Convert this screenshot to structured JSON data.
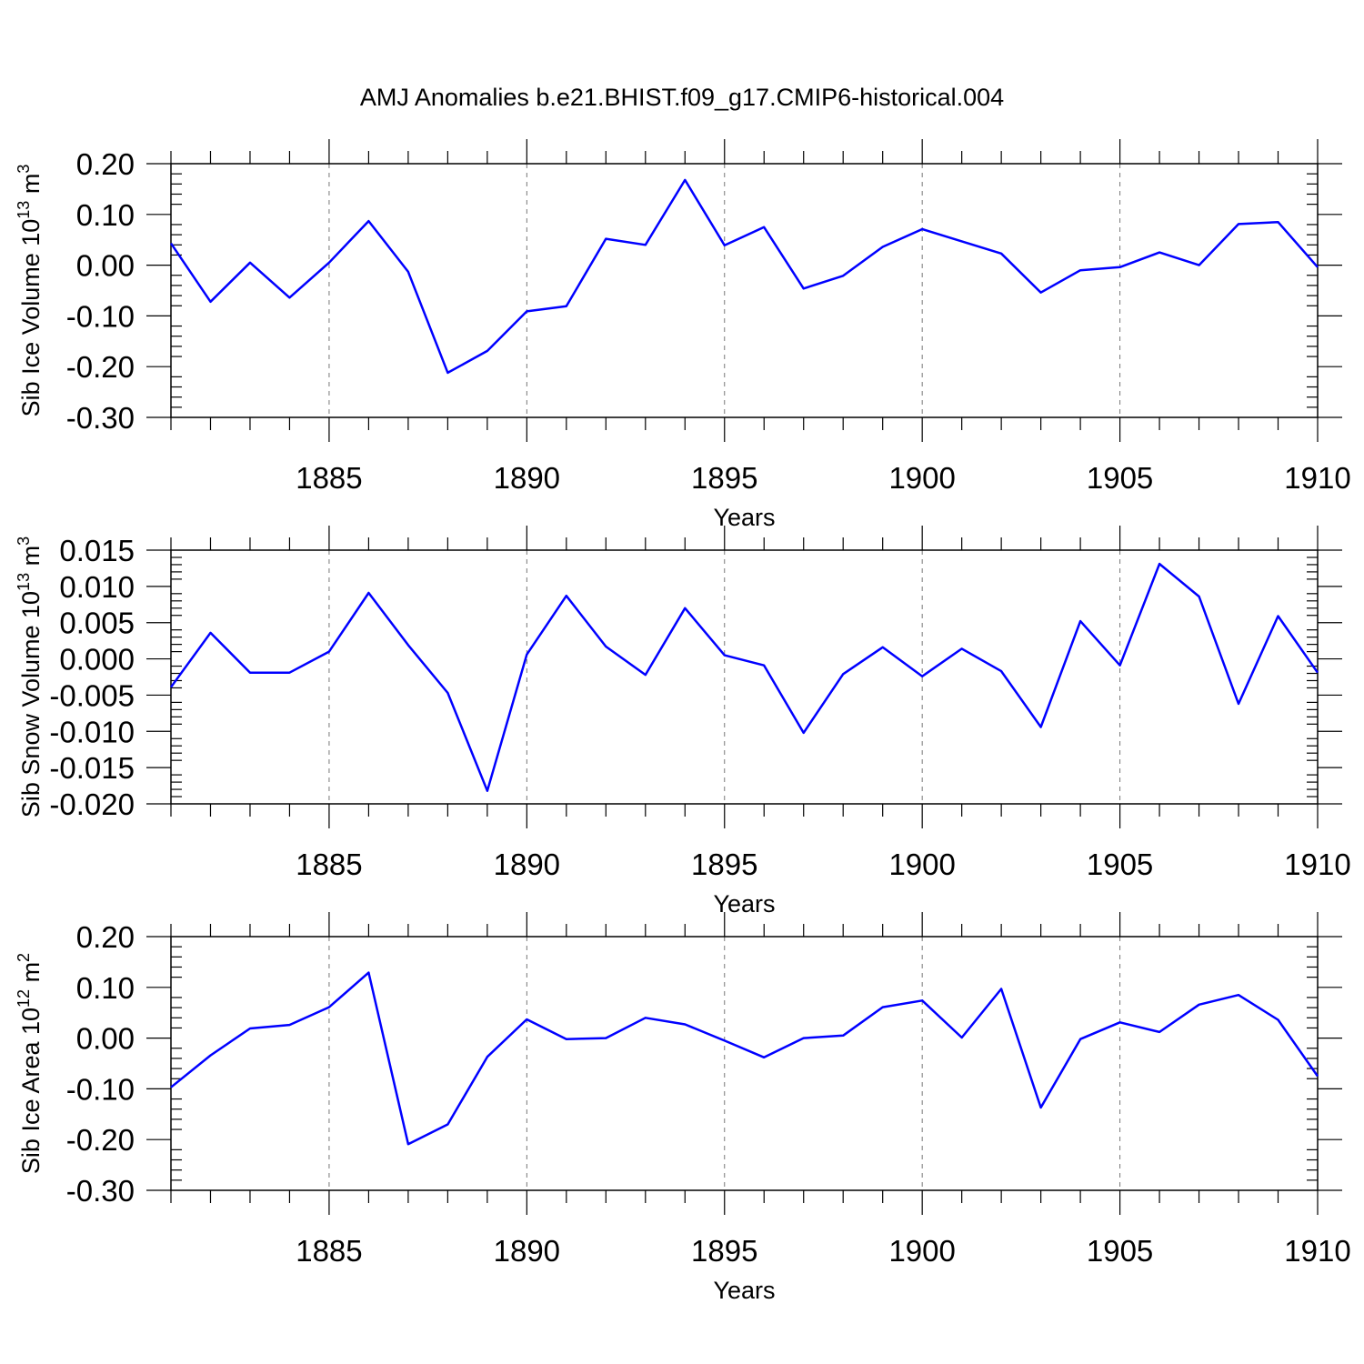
{
  "title": "AMJ Anomalies b.e21.BHIST.f09_g17.CMIP6-historical.004",
  "colors": {
    "series": "#0000ff",
    "axes": "#000000",
    "grid": "#777777"
  },
  "chart_data": [
    {
      "type": "line",
      "ylabel": {
        "main": "Sib Ice Volume 10",
        "exp": "13",
        "unit": " m",
        "unit_exp": "3"
      },
      "xlabel": "Years",
      "xlim": [
        1881,
        1910
      ],
      "ylim": [
        -0.3,
        0.2
      ],
      "yticks": [
        0.2,
        0.1,
        0.0,
        -0.1,
        -0.2,
        -0.3
      ],
      "ytick_labels": [
        "0.20",
        "0.10",
        "0.00",
        "-0.10",
        "-0.20",
        "-0.30"
      ],
      "xticks": [
        1885,
        1890,
        1895,
        1900,
        1905,
        1910
      ],
      "xtick_labels": [
        "1885",
        "1890",
        "1895",
        "1900",
        "1905",
        "1910"
      ],
      "grid": "vertical dashed at major x ticks",
      "x": [
        1881,
        1882,
        1883,
        1884,
        1885,
        1886,
        1887,
        1888,
        1889,
        1890,
        1891,
        1892,
        1893,
        1894,
        1895,
        1896,
        1897,
        1898,
        1899,
        1900,
        1901,
        1902,
        1903,
        1904,
        1905,
        1906,
        1907,
        1908,
        1909,
        1910
      ],
      "values": [
        0.043,
        -0.072,
        0.005,
        -0.064,
        0.005,
        0.087,
        -0.013,
        -0.212,
        -0.169,
        -0.091,
        -0.081,
        0.052,
        0.04,
        0.168,
        0.039,
        0.075,
        -0.046,
        -0.021,
        0.036,
        0.071,
        0.047,
        0.023,
        -0.054,
        -0.01,
        -0.004,
        0.025,
        0.0,
        0.081,
        0.085,
        -0.004
      ]
    },
    {
      "type": "line",
      "ylabel": {
        "main": "Sib Snow Volume 10",
        "exp": "13",
        "unit": " m",
        "unit_exp": "3"
      },
      "xlabel": "Years",
      "xlim": [
        1881,
        1910
      ],
      "ylim": [
        -0.02,
        0.015
      ],
      "yticks": [
        0.015,
        0.01,
        0.005,
        0.0,
        -0.005,
        -0.01,
        -0.015,
        -0.02
      ],
      "ytick_labels": [
        "0.015",
        "0.010",
        "0.005",
        "0.000",
        "-0.005",
        "-0.010",
        "-0.015",
        "-0.020"
      ],
      "xticks": [
        1885,
        1890,
        1895,
        1900,
        1905,
        1910
      ],
      "xtick_labels": [
        "1885",
        "1890",
        "1895",
        "1900",
        "1905",
        "1910"
      ],
      "grid": "vertical dashed at major x ticks",
      "x": [
        1881,
        1882,
        1883,
        1884,
        1885,
        1886,
        1887,
        1888,
        1889,
        1890,
        1891,
        1892,
        1893,
        1894,
        1895,
        1896,
        1897,
        1898,
        1899,
        1900,
        1901,
        1902,
        1903,
        1904,
        1905,
        1906,
        1907,
        1908,
        1909,
        1910
      ],
      "values": [
        -0.0039,
        0.0036,
        -0.0019,
        -0.0019,
        0.001,
        0.0091,
        0.0019,
        -0.0047,
        -0.0182,
        0.0006,
        0.0087,
        0.0017,
        -0.0022,
        0.007,
        0.0005,
        -0.0009,
        -0.0102,
        -0.0021,
        0.0016,
        -0.0024,
        0.0014,
        -0.0017,
        -0.0094,
        0.0052,
        -0.0009,
        0.0131,
        0.0086,
        -0.0062,
        0.0059,
        -0.0019
      ]
    },
    {
      "type": "line",
      "ylabel": {
        "main": "Sib Ice Area 10",
        "exp": "12",
        "unit": " m",
        "unit_exp": "2"
      },
      "xlabel": "Years",
      "xlim": [
        1881,
        1910
      ],
      "ylim": [
        -0.3,
        0.2
      ],
      "yticks": [
        0.2,
        0.1,
        0.0,
        -0.1,
        -0.2,
        -0.3
      ],
      "ytick_labels": [
        "0.20",
        "0.10",
        "0.00",
        "-0.10",
        "-0.20",
        "-0.30"
      ],
      "xticks": [
        1885,
        1890,
        1895,
        1900,
        1905,
        1910
      ],
      "xtick_labels": [
        "1885",
        "1890",
        "1895",
        "1900",
        "1905",
        "1910"
      ],
      "grid": "vertical dashed at major x ticks",
      "x": [
        1881,
        1882,
        1883,
        1884,
        1885,
        1886,
        1887,
        1888,
        1889,
        1890,
        1891,
        1892,
        1893,
        1894,
        1895,
        1896,
        1897,
        1898,
        1899,
        1900,
        1901,
        1902,
        1903,
        1904,
        1905,
        1906,
        1907,
        1908,
        1909,
        1910
      ],
      "values": [
        -0.097,
        -0.034,
        0.019,
        0.026,
        0.061,
        0.129,
        -0.209,
        -0.17,
        -0.037,
        0.037,
        -0.002,
        0.0,
        0.04,
        0.027,
        -0.005,
        -0.038,
        0.0,
        0.005,
        0.061,
        0.074,
        0.001,
        0.097,
        -0.137,
        -0.002,
        0.031,
        0.012,
        0.066,
        0.085,
        0.036,
        -0.075
      ]
    }
  ]
}
